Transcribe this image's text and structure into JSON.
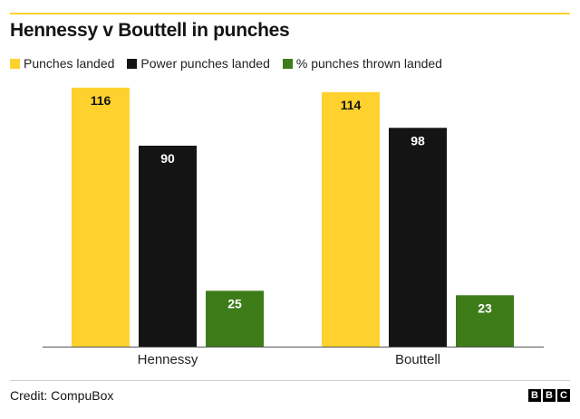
{
  "title": "Hennessy v Bouttell in punches",
  "credit": "Credit: CompuBox",
  "logo": [
    "B",
    "B",
    "C"
  ],
  "colors": {
    "accent_rule": "#FED12E",
    "series": [
      "#FED12E",
      "#141414",
      "#3D7C19"
    ]
  },
  "chart_data": {
    "type": "bar",
    "title": "Hennessy v Bouttell in punches",
    "categories": [
      "Hennessy",
      "Bouttell"
    ],
    "series": [
      {
        "name": "Punches landed",
        "values": [
          116,
          114
        ],
        "color": "#FED12E",
        "label_color": "#141414"
      },
      {
        "name": "Power punches landed",
        "values": [
          90,
          98
        ],
        "color": "#141414",
        "label_color": "#ffffff"
      },
      {
        "name": "% punches thrown landed",
        "values": [
          25,
          23
        ],
        "color": "#3D7C19",
        "label_color": "#ffffff"
      }
    ],
    "ylim": [
      0,
      120
    ],
    "grid": false,
    "legend": "top-left",
    "xlabel": "",
    "ylabel": ""
  }
}
